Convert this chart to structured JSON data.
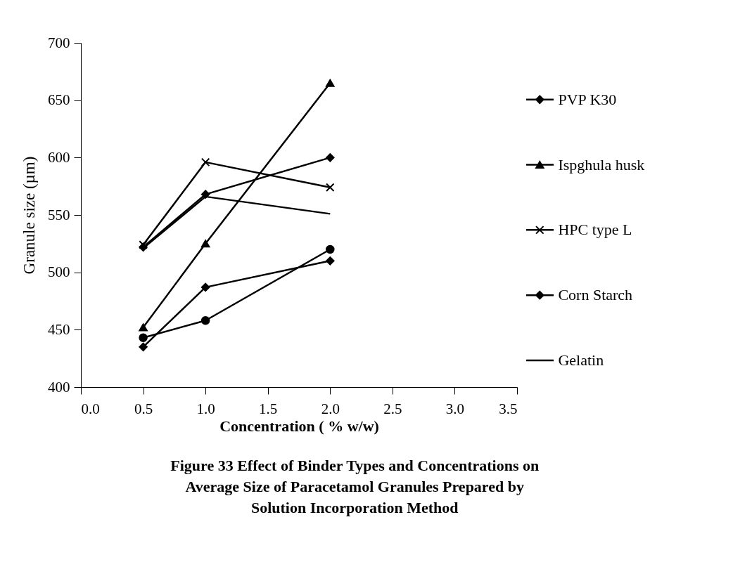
{
  "chart_data": {
    "type": "line",
    "title": "Figure 33  Effect of Binder Types and Concentrations on Average Size of Paracetamol  Granules Prepared by Solution Incorporation Method",
    "xlabel": "Concentration ( % w/w)",
    "ylabel": "Granule size (µm)",
    "x": [
      0.5,
      1.0,
      2.0
    ],
    "series": [
      {
        "name": "PVP K30",
        "color": "#000000",
        "marker": "diamond",
        "values": [
          522,
          568,
          600
        ]
      },
      {
        "color": "#000000",
        "marker": "circle",
        "values": [
          443,
          458,
          520
        ]
      },
      {
        "name": "Ispghula husk",
        "color": "#000000",
        "marker": "triangle",
        "values": [
          452,
          525,
          665
        ]
      },
      {
        "name": "HPC type L",
        "color": "#000000",
        "marker": "cross",
        "values": [
          524,
          596,
          574
        ]
      },
      {
        "name": "Corn Starch",
        "color": "#000000",
        "marker": "diamond",
        "values": [
          435,
          487,
          510
        ]
      },
      {
        "name": "Gelatin",
        "color": "#000000",
        "marker": "none",
        "values": [
          521,
          566,
          551
        ]
      }
    ],
    "xlim": [
      0,
      3.5
    ],
    "xticks": [
      {
        "value": 0,
        "label": "0.0"
      },
      0.5,
      {
        "value": 1,
        "label": "1.0"
      },
      1.5,
      {
        "value": 2,
        "label": "2.0"
      },
      2.5,
      {
        "value": 3,
        "label": "3.0"
      },
      3.5
    ],
    "ylim": [
      400,
      700
    ],
    "yticks": [
      400,
      450,
      500,
      550,
      600,
      650,
      700
    ],
    "grid": false,
    "legend": "right"
  }
}
